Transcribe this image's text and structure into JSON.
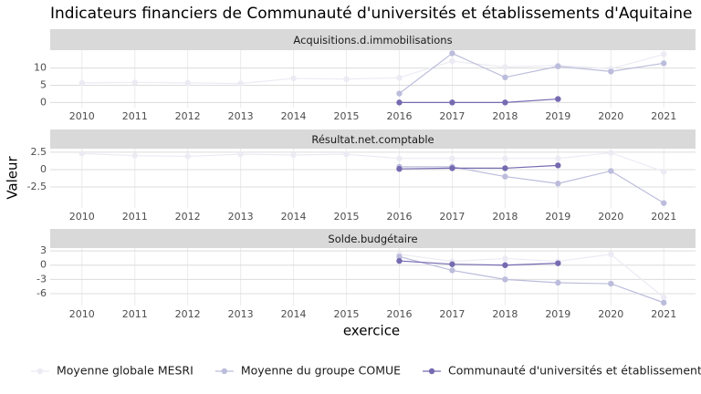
{
  "chart_data": {
    "type": "line",
    "title": "Indicateurs financiers de Communauté d'universités et établissements d'Aquitaine",
    "x_label": "exercice",
    "y_label": "Valeur",
    "x": [
      2010,
      2011,
      2012,
      2013,
      2014,
      2015,
      2016,
      2017,
      2018,
      2019,
      2020,
      2021
    ],
    "xlim": [
      2009.4,
      2021.6
    ],
    "xticks": [
      2010,
      2011,
      2012,
      2013,
      2014,
      2015,
      2016,
      2017,
      2018,
      2019,
      2020,
      2021
    ],
    "grid": true,
    "legend": "bottom",
    "series": [
      {
        "name": "Moyenne globale MESRI",
        "color": "#ecebf4"
      },
      {
        "name": "Moyenne du groupe COMUE",
        "color": "#bcbddc"
      },
      {
        "name": "Communauté d'universités et établissements d'Aquitaine",
        "color": "#756bb1"
      }
    ],
    "panels": [
      {
        "title": "Acquisitions.d.immobilisations",
        "ylim": [
          -1.5,
          15.2
        ],
        "yticks": [
          0,
          5,
          10
        ],
        "values": [
          [
            5.7,
            5.8,
            5.7,
            5.5,
            7.0,
            6.8,
            7.2,
            12.0,
            10.3,
            10.8,
            9.8,
            14.0
          ],
          [
            null,
            null,
            null,
            null,
            null,
            null,
            2.6,
            14.3,
            7.3,
            10.5,
            9.0,
            11.4
          ],
          [
            null,
            null,
            null,
            null,
            null,
            null,
            0,
            0,
            0,
            1.0,
            null,
            null
          ]
        ]
      },
      {
        "title": "Résultat.net.comptable",
        "ylim": [
          -5.5,
          3.0
        ],
        "yticks": [
          2.5,
          0.0,
          -2.5
        ],
        "values": [
          [
            2.3,
            2.0,
            1.9,
            2.2,
            2.1,
            2.2,
            1.6,
            1.6,
            1.6,
            1.6,
            2.4,
            -0.3
          ],
          [
            null,
            null,
            null,
            null,
            null,
            null,
            0.4,
            0.4,
            -1.0,
            -2.0,
            -0.2,
            -4.8
          ],
          [
            null,
            null,
            null,
            null,
            null,
            null,
            0.1,
            0.2,
            0.2,
            0.6,
            null,
            null
          ]
        ]
      },
      {
        "title": "Solde.budgétaire",
        "ylim": [
          -8.5,
          3.6
        ],
        "yticks": [
          3,
          0,
          -3,
          -6
        ],
        "values": [
          [
            null,
            null,
            null,
            null,
            null,
            null,
            2.3,
            0.8,
            1.4,
            0.8,
            2.3,
            -6.8
          ],
          [
            null,
            null,
            null,
            null,
            null,
            null,
            1.8,
            -1.1,
            -3.0,
            -3.7,
            -3.9,
            -7.9
          ],
          [
            null,
            null,
            null,
            null,
            null,
            null,
            0.9,
            0.2,
            0.0,
            0.4,
            null,
            null
          ]
        ]
      }
    ]
  }
}
